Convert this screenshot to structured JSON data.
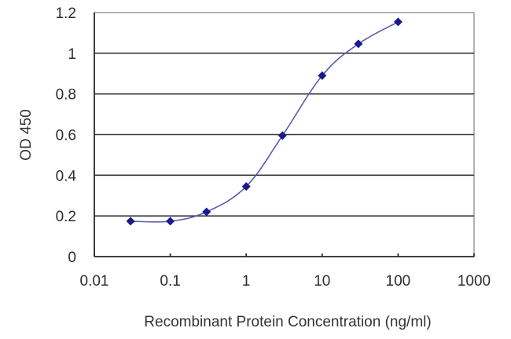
{
  "chart_data": {
    "type": "line",
    "title": "",
    "xlabel": "Recombinant Protein Concentration (ng/ml)",
    "ylabel": "OD 450",
    "x_scale": "log",
    "xlim": [
      0.01,
      1000
    ],
    "ylim": [
      0,
      1.2
    ],
    "x_ticks": [
      0.01,
      0.1,
      1,
      10,
      100,
      1000
    ],
    "x_tick_labels": [
      "0.01",
      "0.1",
      "1",
      "10",
      "100",
      "1000"
    ],
    "y_ticks": [
      0,
      0.2,
      0.4,
      0.6,
      0.8,
      1,
      1.2
    ],
    "y_tick_labels": [
      "0",
      "0.2",
      "0.4",
      "0.6",
      "0.8",
      "1",
      "1.2"
    ],
    "grid": "horizontal",
    "legend": null,
    "series": [
      {
        "name": "OD 450",
        "color": "#1a1a8c",
        "marker": "diamond",
        "x": [
          0.03,
          0.1,
          0.3,
          1,
          3,
          10,
          30,
          100
        ],
        "values": [
          0.174,
          0.174,
          0.22,
          0.345,
          0.595,
          0.89,
          1.046,
          1.154
        ]
      }
    ]
  },
  "colors": {
    "series_line": "#5a5ab0",
    "marker": "#1a1a8c",
    "gridline": "#3a3a3a",
    "text": "#2b2b33"
  }
}
